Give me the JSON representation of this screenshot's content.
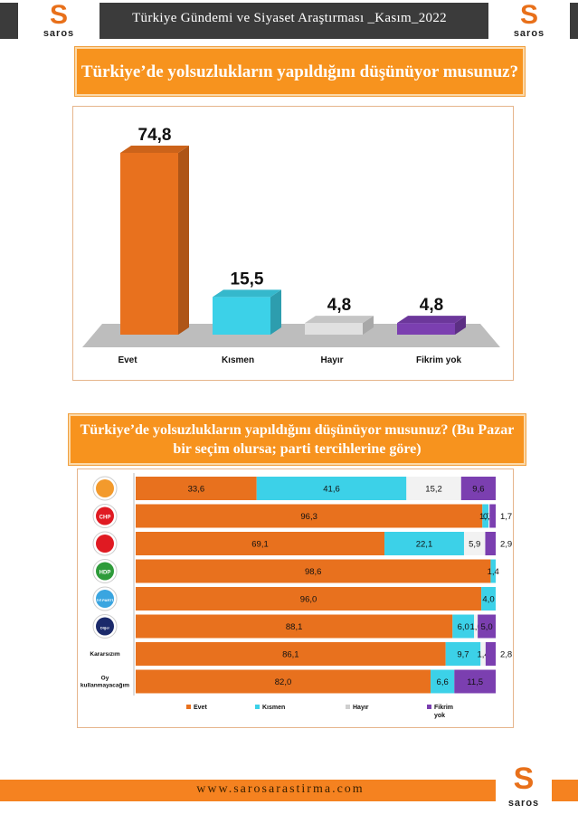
{
  "header": {
    "title": "Türkiye Gündemi ve Siyaset Araştırması _Kasım_2022",
    "logo_text": "saros"
  },
  "colors": {
    "evet": "#e8711e",
    "kismen": "#3cd1e8",
    "hayir": "#f2f2f2",
    "fikrim_yok": "#7b3fb0",
    "accent": "#f7931e",
    "header_bg": "#3b3b3b"
  },
  "chart_data": [
    {
      "type": "bar",
      "title": "Türkiye’de yolsuzlukların yapıldığını düşünüyor musunuz?",
      "categories": [
        "Evet",
        "Kısmen",
        "Hayır",
        "Fikrim yok"
      ],
      "values": [
        74.8,
        15.5,
        4.8,
        4.8
      ],
      "value_labels": [
        "74,8",
        "15,5",
        "4,8",
        "4,8"
      ],
      "ylim": [
        0,
        80
      ]
    },
    {
      "type": "bar",
      "orientation": "horizontal-stacked-100",
      "title": "Türkiye’de yolsuzlukların yapıldığını düşünüyor musunuz? (Bu Pazar bir seçim olursa; parti tercihlerine göre)",
      "categories": [
        "AK Parti",
        "CHP",
        "MHP",
        "HDP",
        "İYİ Parti",
        "Diğer",
        "Kararsızım",
        "Oy kullanmayacağım"
      ],
      "row_text_labels": [
        "",
        "",
        "",
        "",
        "",
        "",
        "Kararsızım",
        "Oy kullanmayacağım"
      ],
      "logo_texts": [
        "",
        "CHP",
        "",
        "HDP",
        "İYİ PARTİ",
        "Diğer",
        "",
        ""
      ],
      "series": [
        {
          "name": "Evet",
          "values": [
            33.6,
            96.3,
            69.1,
            98.6,
            96.0,
            88.1,
            86.1,
            82.0
          ],
          "labels": [
            "33,6",
            "96,3",
            "69,1",
            "98,6",
            "96,0",
            "88,1",
            "86,1",
            "82,0"
          ]
        },
        {
          "name": "Kısmen",
          "values": [
            41.6,
            1.7,
            22.1,
            1.4,
            4.0,
            6.0,
            9.7,
            6.6
          ],
          "labels": [
            "41,6",
            "1,7",
            "22,1",
            "1,4",
            "4,0",
            "6,0",
            "9,7",
            "6,6"
          ]
        },
        {
          "name": "Hayır",
          "values": [
            15.2,
            0.3,
            5.9,
            0,
            0,
            1.0,
            1.4,
            0
          ],
          "labels": [
            "15,2",
            "0,3",
            "5,9",
            "",
            "",
            "1,0",
            "1,4",
            ""
          ]
        },
        {
          "name": "Fikrim yok",
          "values": [
            9.6,
            1.7,
            2.9,
            0,
            0,
            5.0,
            2.8,
            11.5
          ],
          "labels": [
            "9,6",
            "1,7",
            "2,9",
            "",
            "",
            "5,0",
            "2,8",
            "11,5"
          ]
        }
      ],
      "legend": [
        "Evet",
        "Kısmen",
        "Hayır",
        "Fikrim yok"
      ],
      "legend_position": "bottom"
    }
  ],
  "footer": {
    "url": "www.sarosarastirma.com",
    "logo_text": "saros"
  }
}
